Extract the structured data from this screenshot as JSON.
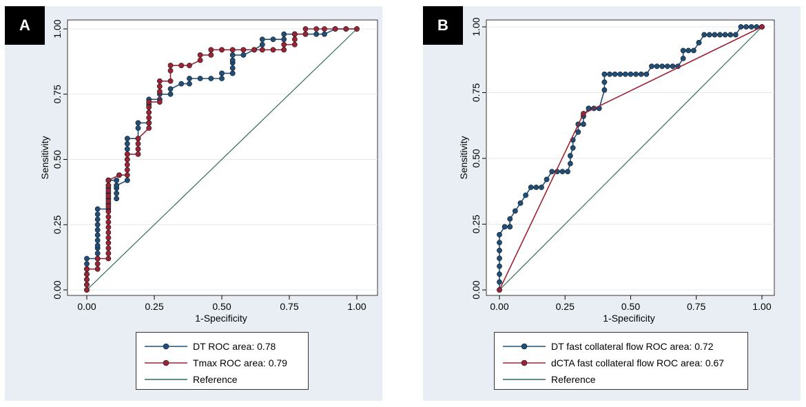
{
  "chart_data": [
    {
      "type": "line",
      "panel_label": "A",
      "title": "",
      "xlabel": "1-Specificity",
      "ylabel": "Sensitivity",
      "xlim": [
        0,
        1
      ],
      "ylim": [
        0,
        1
      ],
      "xticks": [
        "0.00",
        "0.25",
        "0.50",
        "0.75",
        "1.00"
      ],
      "yticks": [
        "0.00",
        "0.25",
        "0.50",
        "0.75",
        "1.00"
      ],
      "series": [
        {
          "name": "DT ROC area: 0.78",
          "color": "#1f4e79",
          "x": [
            0,
            0,
            0,
            0,
            0,
            0,
            0,
            0.04,
            0.04,
            0.04,
            0.04,
            0.04,
            0.04,
            0.04,
            0.04,
            0.04,
            0.04,
            0.04,
            0.08,
            0.08,
            0.08,
            0.08,
            0.08,
            0.08,
            0.08,
            0.08,
            0.08,
            0.08,
            0.11,
            0.11,
            0.11,
            0.11,
            0.11,
            0.15,
            0.15,
            0.15,
            0.15,
            0.15,
            0.15,
            0.19,
            0.19,
            0.19,
            0.23,
            0.23,
            0.23,
            0.27,
            0.27,
            0.31,
            0.31,
            0.35,
            0.38,
            0.38,
            0.42,
            0.46,
            0.5,
            0.5,
            0.54,
            0.54,
            0.54,
            0.54,
            0.54,
            0.58,
            0.62,
            0.65,
            0.65,
            0.69,
            0.73,
            0.73,
            0.77,
            0.77,
            0.81,
            0.85,
            0.88,
            0.92,
            0.96,
            1
          ],
          "y": [
            0,
            0.02,
            0.04,
            0.06,
            0.08,
            0.1,
            0.12,
            0.12,
            0.14,
            0.16,
            0.17,
            0.19,
            0.21,
            0.23,
            0.25,
            0.27,
            0.29,
            0.31,
            0.31,
            0.33,
            0.35,
            0.37,
            0.39,
            0.4,
            0.42,
            0.42,
            0.42,
            0.42,
            0.42,
            0.35,
            0.37,
            0.39,
            0.4,
            0.42,
            0.5,
            0.52,
            0.54,
            0.56,
            0.58,
            0.58,
            0.62,
            0.64,
            0.64,
            0.71,
            0.73,
            0.73,
            0.75,
            0.75,
            0.77,
            0.79,
            0.79,
            0.81,
            0.81,
            0.81,
            0.81,
            0.83,
            0.83,
            0.85,
            0.87,
            0.88,
            0.9,
            0.9,
            0.92,
            0.94,
            0.96,
            0.96,
            0.96,
            0.98,
            0.98,
            0.98,
            0.98,
            0.98,
            0.98,
            1,
            1,
            1
          ]
        },
        {
          "name": "Tmax ROC area: 0.79",
          "color": "#9b2335",
          "x": [
            0,
            0,
            0,
            0,
            0,
            0,
            0.04,
            0.04,
            0.04,
            0.08,
            0.08,
            0.08,
            0.08,
            0.08,
            0.08,
            0.08,
            0.08,
            0.08,
            0.08,
            0.08,
            0.08,
            0.08,
            0.08,
            0.08,
            0.08,
            0.08,
            0.12,
            0.12,
            0.15,
            0.15,
            0.15,
            0.15,
            0.15,
            0.19,
            0.19,
            0.19,
            0.19,
            0.23,
            0.23,
            0.23,
            0.23,
            0.23,
            0.23,
            0.27,
            0.27,
            0.27,
            0.27,
            0.31,
            0.31,
            0.31,
            0.35,
            0.38,
            0.42,
            0.42,
            0.46,
            0.46,
            0.5,
            0.54,
            0.58,
            0.62,
            0.65,
            0.69,
            0.73,
            0.73,
            0.77,
            0.77,
            0.77,
            0.77,
            0.81,
            0.81,
            0.85,
            0.88,
            0.92,
            0.96,
            1
          ],
          "y": [
            0,
            0.02,
            0.04,
            0.06,
            0.08,
            0.08,
            0.08,
            0.1,
            0.12,
            0.12,
            0.14,
            0.16,
            0.18,
            0.2,
            0.22,
            0.24,
            0.26,
            0.28,
            0.3,
            0.32,
            0.34,
            0.36,
            0.38,
            0.4,
            0.42,
            0.42,
            0.44,
            0.44,
            0.44,
            0.46,
            0.48,
            0.5,
            0.52,
            0.52,
            0.54,
            0.56,
            0.58,
            0.62,
            0.64,
            0.66,
            0.68,
            0.7,
            0.72,
            0.72,
            0.76,
            0.78,
            0.8,
            0.8,
            0.84,
            0.86,
            0.86,
            0.86,
            0.88,
            0.9,
            0.9,
            0.92,
            0.92,
            0.92,
            0.92,
            0.92,
            0.92,
            0.92,
            0.92,
            0.94,
            0.94,
            0.96,
            0.98,
            0.98,
            0.98,
            1,
            1,
            1,
            1,
            1,
            1
          ]
        },
        {
          "name": "Reference",
          "color": "#2e6b57",
          "x": [
            0,
            1
          ],
          "y": [
            0,
            1
          ]
        }
      ]
    },
    {
      "type": "line",
      "panel_label": "B",
      "title": "",
      "xlabel": "1-Specificity",
      "ylabel": "Sensitivity",
      "xlim": [
        0,
        1
      ],
      "ylim": [
        0,
        1
      ],
      "xticks": [
        "0.00",
        "0.25",
        "0.50",
        "0.75",
        "1.00"
      ],
      "yticks": [
        "0.00",
        "0.25",
        "0.50",
        "0.75",
        "1.00"
      ],
      "series": [
        {
          "name": "DT fast collateral flow ROC area: 0.72",
          "color": "#1f4e79",
          "x": [
            0,
            0,
            0,
            0,
            0,
            0,
            0,
            0,
            0.02,
            0.04,
            0.04,
            0.06,
            0.08,
            0.1,
            0.12,
            0.14,
            0.16,
            0.18,
            0.2,
            0.22,
            0.24,
            0.26,
            0.27,
            0.27,
            0.28,
            0.28,
            0.3,
            0.3,
            0.32,
            0.32,
            0.34,
            0.34,
            0.36,
            0.38,
            0.4,
            0.4,
            0.4,
            0.42,
            0.44,
            0.46,
            0.48,
            0.5,
            0.52,
            0.54,
            0.56,
            0.58,
            0.6,
            0.62,
            0.64,
            0.66,
            0.68,
            0.7,
            0.7,
            0.72,
            0.74,
            0.76,
            0.76,
            0.78,
            0.8,
            0.82,
            0.84,
            0.86,
            0.88,
            0.9,
            0.92,
            0.94,
            0.96,
            0.98,
            1
          ],
          "y": [
            0,
            0.03,
            0.06,
            0.09,
            0.12,
            0.15,
            0.18,
            0.21,
            0.24,
            0.24,
            0.27,
            0.3,
            0.33,
            0.36,
            0.39,
            0.39,
            0.39,
            0.42,
            0.45,
            0.45,
            0.45,
            0.45,
            0.48,
            0.51,
            0.54,
            0.57,
            0.6,
            0.63,
            0.63,
            0.66,
            0.69,
            0.69,
            0.69,
            0.69,
            0.76,
            0.79,
            0.82,
            0.82,
            0.82,
            0.82,
            0.82,
            0.82,
            0.82,
            0.82,
            0.82,
            0.85,
            0.85,
            0.85,
            0.85,
            0.85,
            0.85,
            0.88,
            0.91,
            0.91,
            0.91,
            0.94,
            0.94,
            0.97,
            0.97,
            0.97,
            0.97,
            0.97,
            0.97,
            0.97,
            1,
            1,
            1,
            1,
            1
          ]
        },
        {
          "name": "dCTA fast collateral flow  ROC area: 0.67",
          "color": "#9b2335",
          "x": [
            0,
            0.32,
            1
          ],
          "y": [
            0,
            0.67,
            1
          ]
        },
        {
          "name": "Reference",
          "color": "#2e6b57",
          "x": [
            0,
            1
          ],
          "y": [
            0,
            1
          ]
        }
      ]
    }
  ]
}
